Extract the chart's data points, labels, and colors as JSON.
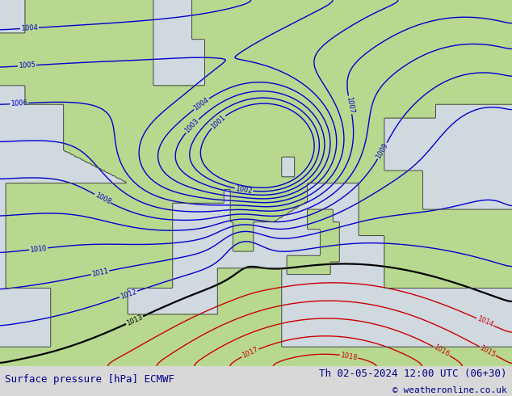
{
  "title_left": "Surface pressure [hPa] ECMWF",
  "title_right": "Th 02-05-2024 12:00 UTC (06+30)",
  "copyright": "© weatheronline.co.uk",
  "contour_color_blue": "#0000cc",
  "contour_color_red": "#cc0000",
  "contour_color_black": "#000000",
  "title_color": "#00008B",
  "title_fontsize": 9,
  "copyright_color": "#00008B",
  "copyright_fontsize": 8,
  "figsize": [
    6.34,
    4.9
  ],
  "dpi": 100,
  "sea_color": "#d0d8e0",
  "land_color": "#b8d890",
  "bottom_bar_color": "#d8d8d8",
  "lon_min": -10,
  "lon_max": 30,
  "lat_min": 30,
  "lat_max": 58
}
